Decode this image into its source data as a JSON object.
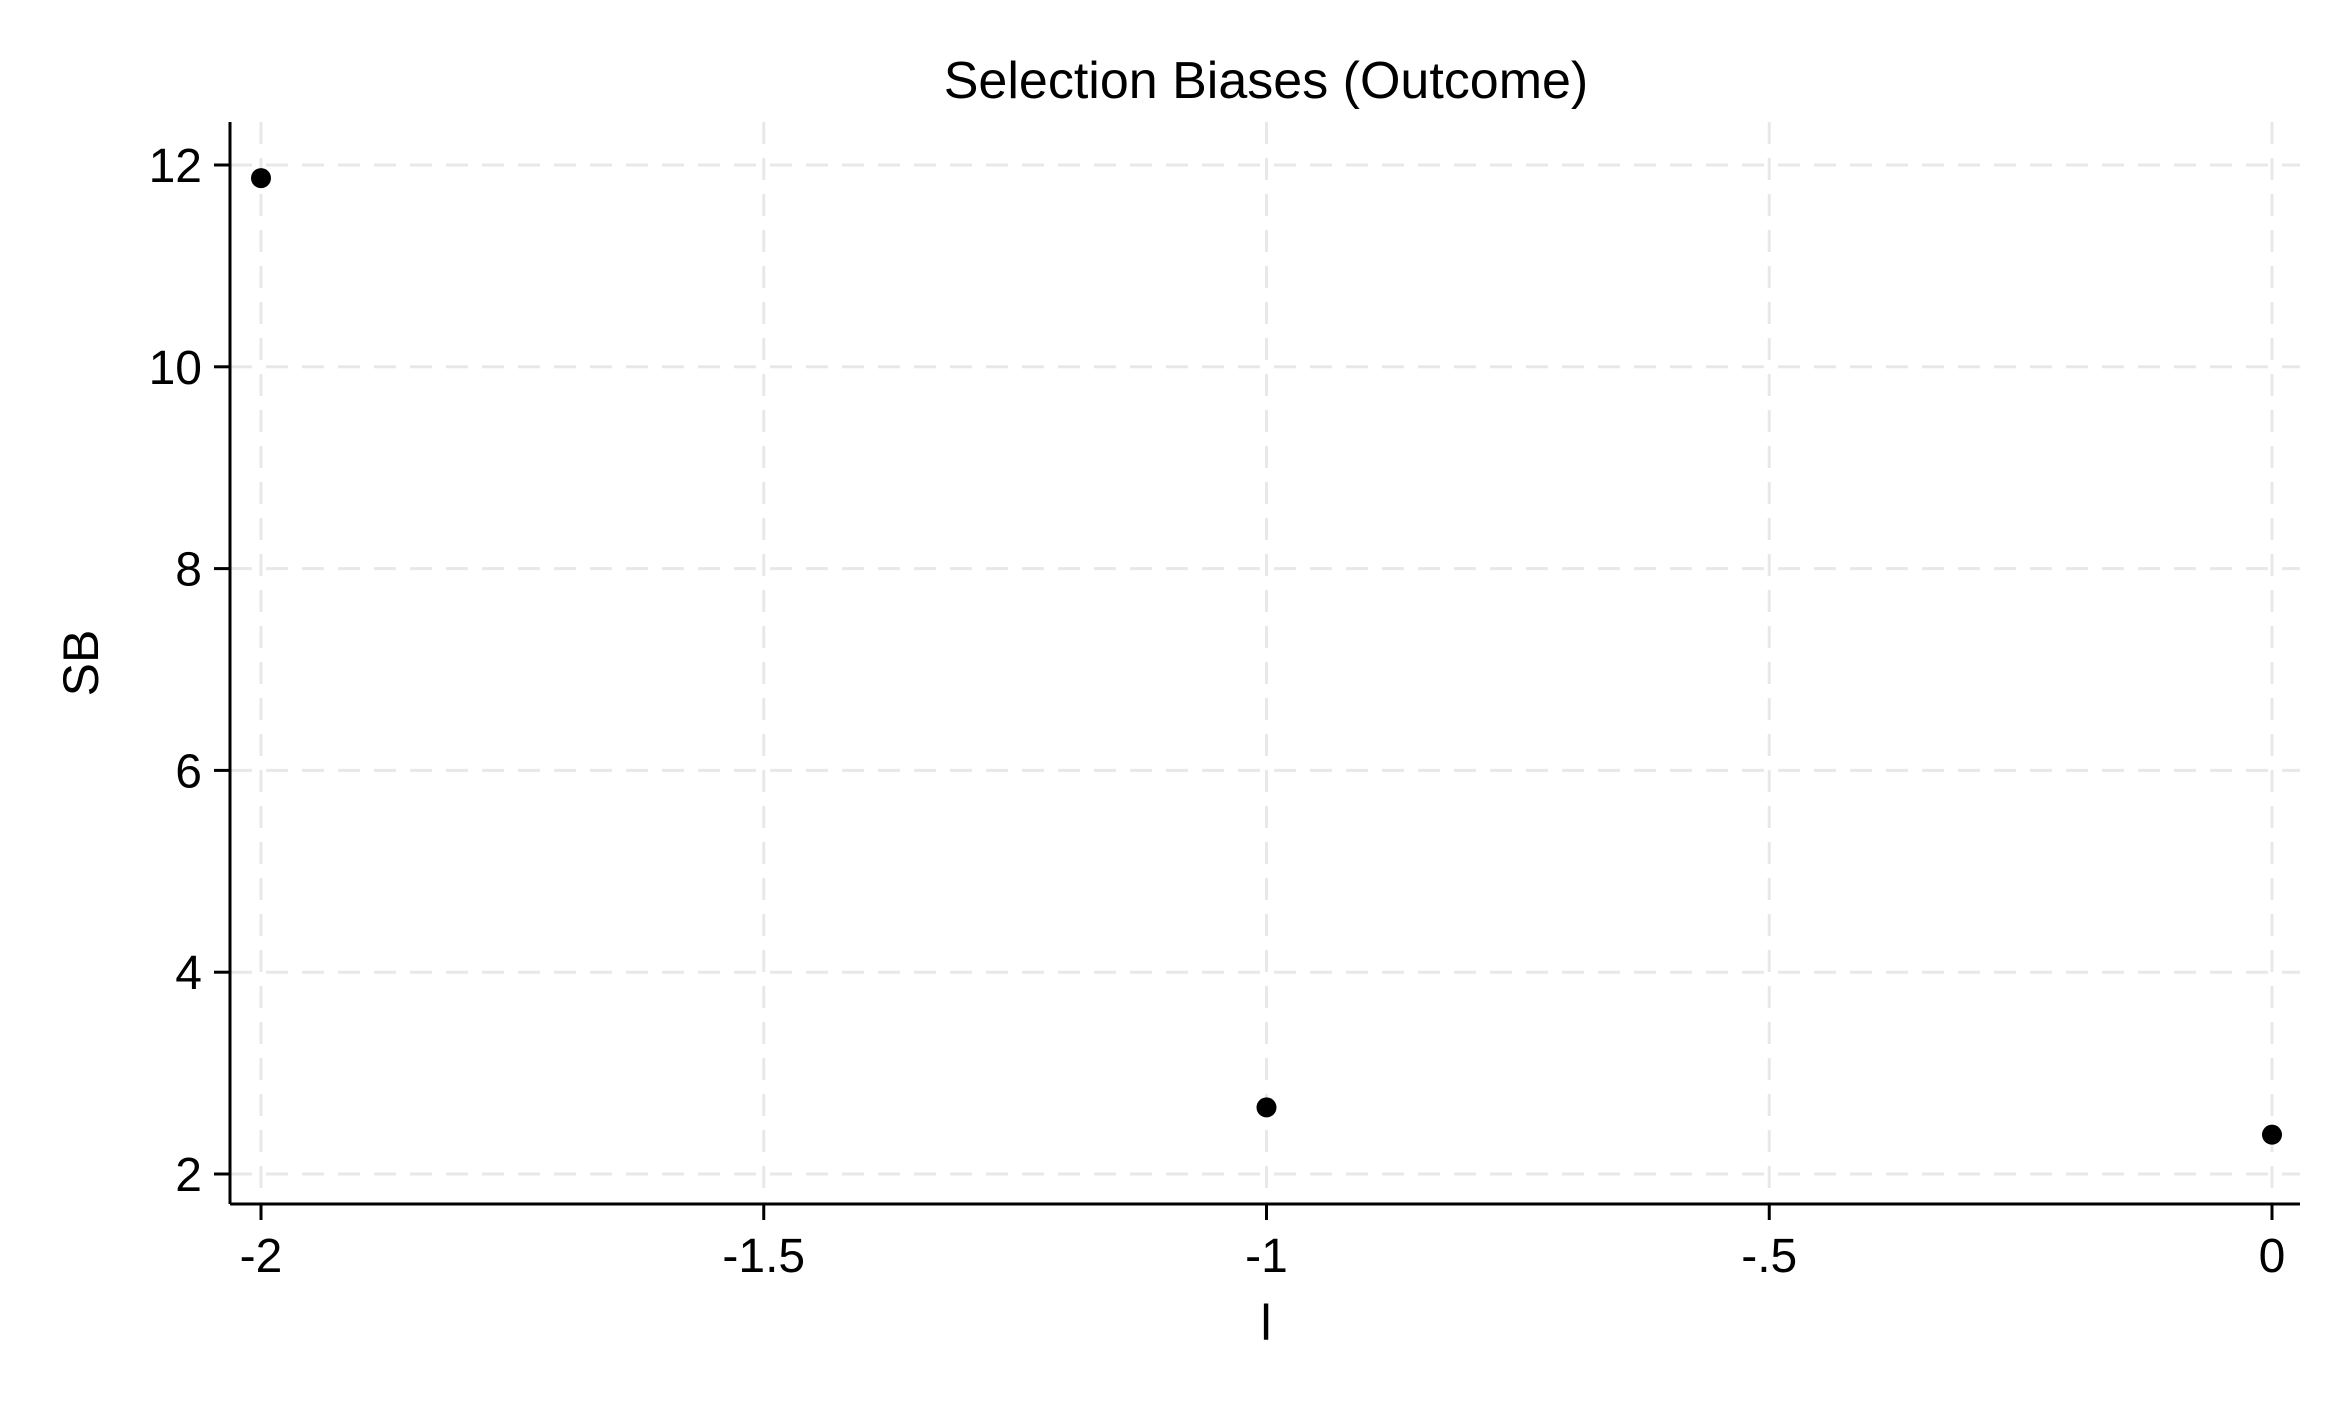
{
  "chart_data": {
    "type": "scatter",
    "title": "Selection Biases (Outcome)",
    "xlabel": "l",
    "ylabel": "SB",
    "xlim": [
      -2,
      0
    ],
    "ylim": [
      2,
      12
    ],
    "xticks": [
      -2,
      -1.5,
      -1,
      -0.5,
      0
    ],
    "xtick_labels": [
      "-2",
      "-1.5",
      "-1",
      "-.5",
      "0"
    ],
    "yticks": [
      2,
      4,
      6,
      8,
      10,
      12
    ],
    "ytick_labels": [
      "2",
      "4",
      "6",
      "8",
      "10",
      "12"
    ],
    "grid": true,
    "series": [
      {
        "x": [
          -2,
          -1,
          0
        ],
        "y": [
          11.87,
          2.66,
          2.39
        ],
        "color": "#000000"
      }
    ]
  }
}
